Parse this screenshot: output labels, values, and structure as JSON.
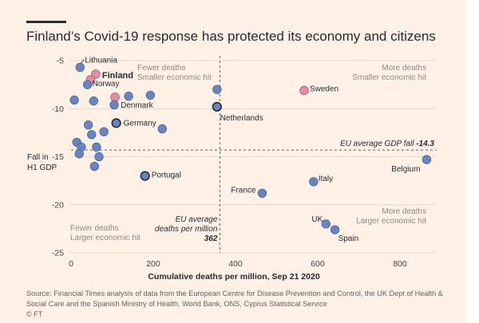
{
  "title": "Finland’s Covid-19 response has protected its economy and citizens",
  "source_lines": [
    "Source: Financial Times analysis of data from the European Centre for Disease Prevention and Control, the UK Dept of Health &",
    "Social Care and the Spanish Ministry of Health. World Bank, ONS, Cyprus Statistical Service",
    "© FT"
  ],
  "colors": {
    "background": "#fff1e5",
    "point_default": "#6a85bd",
    "point_highlight": "#df8fa6",
    "point_stroke": "#262a33",
    "text": "#262a33",
    "grid": "#e3d8cd",
    "reference": "#66605c"
  },
  "chart_data": {
    "type": "scatter",
    "xlabel": "Cumulative deaths per million, Sep 21 2020",
    "ylabel_lines": [
      "Fall in",
      "H1 GDP"
    ],
    "xlim": [
      0,
      870
    ],
    "ylim": [
      -25,
      -4.5
    ],
    "xticks": [
      0,
      200,
      400,
      600,
      800
    ],
    "yticks": [
      -5,
      -10,
      -15,
      -20,
      -25
    ],
    "grid": "horizontal",
    "reference_lines": {
      "eu_average_gdp_fall": -14.3,
      "eu_average_deaths_per_million": 362
    },
    "reference_labels": {
      "gdp_text": "EU average GDP fall ",
      "gdp_value": "-14.3",
      "deaths_lines": [
        "EU average",
        "deaths per million"
      ],
      "deaths_value": "362"
    },
    "quadrant_labels": {
      "top_left": [
        "Fewer deaths",
        "Smaller economic hit"
      ],
      "top_right": [
        "More deaths",
        "Smaller economic hit"
      ],
      "bottom_left": [
        "Fewer deaths",
        "Larger economic hit"
      ],
      "bottom_right": [
        "More deaths",
        "Larger economic hit"
      ]
    },
    "points": [
      {
        "x": 22,
        "y": -5.7,
        "label": "Lithuania",
        "style": "normal"
      },
      {
        "x": 60,
        "y": -6.4,
        "label": "Finland",
        "style": "highlight"
      },
      {
        "x": 47,
        "y": -7.0,
        "label": "",
        "style": "highlight"
      },
      {
        "x": 40,
        "y": -7.5,
        "label": "Norway",
        "style": "normal"
      },
      {
        "x": 567,
        "y": -8.1,
        "label": "Sweden",
        "style": "highlight"
      },
      {
        "x": 107,
        "y": -8.8,
        "label": "Denmark",
        "style": "highlight"
      },
      {
        "x": 140,
        "y": -8.7,
        "label": "",
        "style": "normal"
      },
      {
        "x": 193,
        "y": -8.6,
        "label": "",
        "style": "normal"
      },
      {
        "x": 355,
        "y": -8.0,
        "label": "",
        "style": "normal"
      },
      {
        "x": 8,
        "y": -9.1,
        "label": "",
        "style": "normal"
      },
      {
        "x": 55,
        "y": -9.2,
        "label": "",
        "style": "normal"
      },
      {
        "x": 105,
        "y": -9.6,
        "label": "",
        "style": "normal"
      },
      {
        "x": 355,
        "y": -9.8,
        "label": "Netherlands",
        "style": "outlined"
      },
      {
        "x": 110,
        "y": -11.5,
        "label": "Germany",
        "style": "outlined"
      },
      {
        "x": 42,
        "y": -11.7,
        "label": "",
        "style": "normal"
      },
      {
        "x": 222,
        "y": -12.1,
        "label": "",
        "style": "normal"
      },
      {
        "x": 80,
        "y": -12.4,
        "label": "",
        "style": "normal"
      },
      {
        "x": 50,
        "y": -12.7,
        "label": "",
        "style": "normal"
      },
      {
        "x": 14,
        "y": -13.5,
        "label": "",
        "style": "normal"
      },
      {
        "x": 25,
        "y": -14.0,
        "label": "",
        "style": "normal"
      },
      {
        "x": 62,
        "y": -14.0,
        "label": "",
        "style": "normal"
      },
      {
        "x": 20,
        "y": -14.7,
        "label": "",
        "style": "normal"
      },
      {
        "x": 68,
        "y": -15.0,
        "label": "",
        "style": "normal"
      },
      {
        "x": 57,
        "y": -16.0,
        "label": "",
        "style": "normal"
      },
      {
        "x": 865,
        "y": -15.3,
        "label": "Belgium",
        "style": "normal"
      },
      {
        "x": 180,
        "y": -17.0,
        "label": "Portugal",
        "style": "outlined"
      },
      {
        "x": 590,
        "y": -17.6,
        "label": "Italy",
        "style": "normal"
      },
      {
        "x": 465,
        "y": -18.8,
        "label": "France",
        "style": "normal"
      },
      {
        "x": 620,
        "y": -22.0,
        "label": "UK",
        "style": "normal"
      },
      {
        "x": 642,
        "y": -22.6,
        "label": "Spain",
        "style": "normal"
      }
    ]
  }
}
